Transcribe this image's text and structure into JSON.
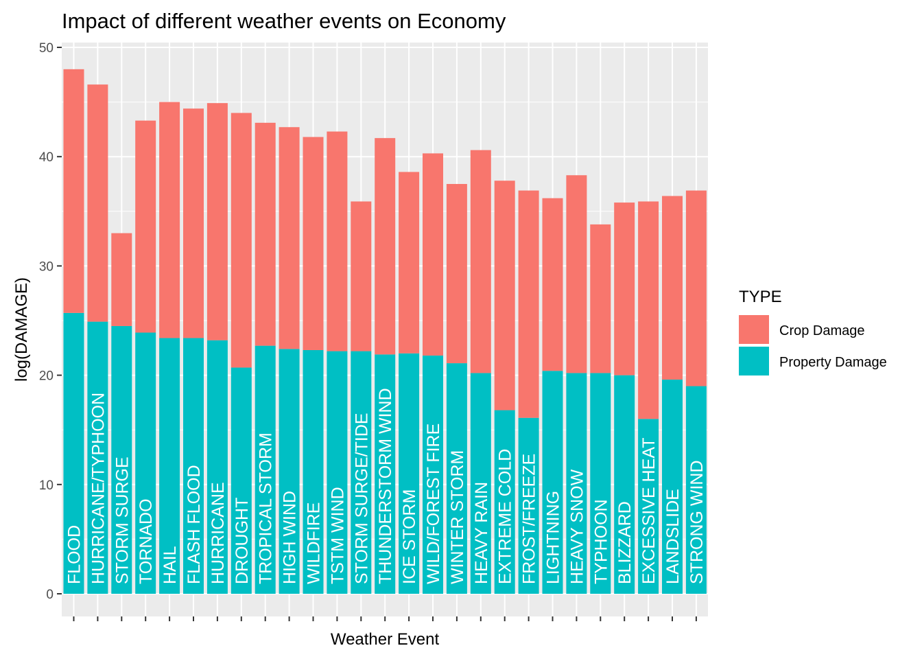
{
  "chart_data": {
    "type": "bar",
    "stacked": true,
    "title": "Impact of different weather events on Economy",
    "xlabel": "Weather Event",
    "ylabel": "log(DAMAGE)",
    "ylim": [
      0,
      50
    ],
    "yticks": [
      0,
      10,
      20,
      30,
      40,
      50
    ],
    "grid": true,
    "legend_position": "right",
    "legend_title": "TYPE",
    "categories": [
      "FLOOD",
      "HURRICANE/TYPHOON",
      "STORM SURGE",
      "TORNADO",
      "HAIL",
      "FLASH FLOOD",
      "HURRICANE",
      "DROUGHT",
      "TROPICAL STORM",
      "HIGH WIND",
      "WILDFIRE",
      "TSTM WIND",
      "STORM SURGE/TIDE",
      "THUNDERSTORM WIND",
      "ICE STORM",
      "WILD/FOREST FIRE",
      "WINTER STORM",
      "HEAVY RAIN",
      "EXTREME COLD",
      "FROST/FREEZE",
      "LIGHTNING",
      "HEAVY SNOW",
      "TYPHOON",
      "BLIZZARD",
      "EXCESSIVE HEAT",
      "LANDSLIDE",
      "STRONG WIND"
    ],
    "series": [
      {
        "name": "Property Damage",
        "color": "#00BFC4",
        "values": [
          25.7,
          24.9,
          24.5,
          23.9,
          23.4,
          23.4,
          23.2,
          20.7,
          22.7,
          22.4,
          22.3,
          22.2,
          22.2,
          21.9,
          22.0,
          21.8,
          21.1,
          20.2,
          16.8,
          16.1,
          20.4,
          20.2,
          20.2,
          20.0,
          16.0,
          19.6,
          19.0
        ]
      },
      {
        "name": "Crop Damage",
        "color": "#F8766D",
        "values": [
          22.3,
          21.7,
          8.5,
          19.4,
          21.6,
          21.0,
          21.7,
          23.3,
          20.4,
          20.3,
          19.5,
          20.1,
          13.7,
          19.8,
          16.6,
          18.5,
          16.4,
          20.4,
          21.0,
          20.8,
          15.8,
          18.1,
          13.6,
          15.8,
          19.9,
          16.8,
          17.9
        ]
      }
    ]
  },
  "legend": {
    "title": "TYPE",
    "items": [
      {
        "label": "Crop Damage",
        "color": "#F8766D"
      },
      {
        "label": "Property Damage",
        "color": "#00BFC4"
      }
    ]
  }
}
